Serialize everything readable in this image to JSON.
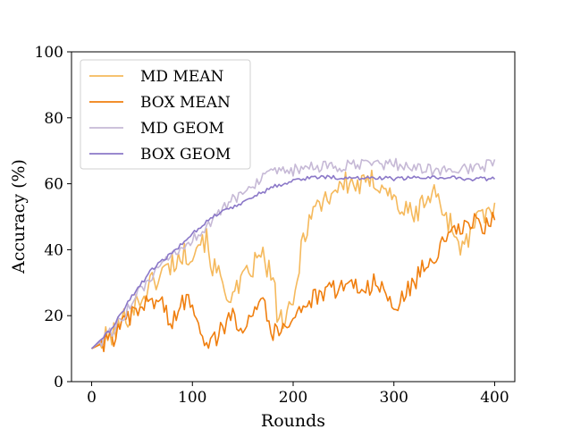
{
  "chart_data": {
    "type": "line",
    "title": "",
    "xlabel": "Rounds",
    "ylabel": "Accuracy (%)",
    "xlim": [
      -20,
      420
    ],
    "ylim": [
      0,
      100
    ],
    "xticks": [
      0,
      100,
      200,
      300,
      400
    ],
    "yticks": [
      0,
      20,
      40,
      60,
      80,
      100
    ],
    "legend_position": "top-left",
    "series": [
      {
        "name": "MD MEAN",
        "color": "#f5b95c",
        "noise": 4,
        "points": [
          [
            0,
            10
          ],
          [
            20,
            14
          ],
          [
            40,
            22
          ],
          [
            60,
            30
          ],
          [
            80,
            36
          ],
          [
            100,
            40
          ],
          [
            110,
            44
          ],
          [
            115,
            42
          ],
          [
            120,
            35
          ],
          [
            130,
            30
          ],
          [
            140,
            25
          ],
          [
            150,
            30
          ],
          [
            160,
            35
          ],
          [
            170,
            38
          ],
          [
            180,
            30
          ],
          [
            185,
            20
          ],
          [
            190,
            18
          ],
          [
            200,
            22
          ],
          [
            210,
            45
          ],
          [
            220,
            52
          ],
          [
            230,
            55
          ],
          [
            240,
            58
          ],
          [
            250,
            60
          ],
          [
            260,
            60
          ],
          [
            270,
            59
          ],
          [
            280,
            61
          ],
          [
            290,
            60
          ],
          [
            300,
            55
          ],
          [
            310,
            52
          ],
          [
            320,
            50
          ],
          [
            330,
            55
          ],
          [
            340,
            57
          ],
          [
            350,
            52
          ],
          [
            360,
            45
          ],
          [
            370,
            40
          ],
          [
            380,
            48
          ],
          [
            390,
            50
          ],
          [
            400,
            52
          ]
        ]
      },
      {
        "name": "BOX MEAN",
        "color": "#f07f0f",
        "noise": 3,
        "points": [
          [
            0,
            10
          ],
          [
            20,
            13
          ],
          [
            40,
            20
          ],
          [
            60,
            25
          ],
          [
            70,
            24
          ],
          [
            80,
            17
          ],
          [
            90,
            24
          ],
          [
            100,
            25
          ],
          [
            110,
            14
          ],
          [
            120,
            12
          ],
          [
            130,
            16
          ],
          [
            140,
            20
          ],
          [
            150,
            17
          ],
          [
            160,
            22
          ],
          [
            170,
            26
          ],
          [
            180,
            14
          ],
          [
            190,
            17
          ],
          [
            200,
            20
          ],
          [
            210,
            23
          ],
          [
            220,
            25
          ],
          [
            230,
            26
          ],
          [
            240,
            28
          ],
          [
            250,
            29
          ],
          [
            260,
            30
          ],
          [
            270,
            28
          ],
          [
            280,
            30
          ],
          [
            290,
            27
          ],
          [
            300,
            22
          ],
          [
            310,
            26
          ],
          [
            320,
            30
          ],
          [
            330,
            35
          ],
          [
            340,
            38
          ],
          [
            350,
            42
          ],
          [
            360,
            45
          ],
          [
            370,
            47
          ],
          [
            380,
            48
          ],
          [
            390,
            47
          ],
          [
            400,
            50
          ]
        ]
      },
      {
        "name": "MD GEOM",
        "color": "#c6b9d6",
        "noise": 1.8,
        "points": [
          [
            0,
            10
          ],
          [
            20,
            15
          ],
          [
            40,
            24
          ],
          [
            60,
            32
          ],
          [
            80,
            38
          ],
          [
            100,
            43
          ],
          [
            120,
            49
          ],
          [
            140,
            55
          ],
          [
            160,
            60
          ],
          [
            180,
            63
          ],
          [
            200,
            64
          ],
          [
            220,
            65
          ],
          [
            240,
            65
          ],
          [
            260,
            65.5
          ],
          [
            280,
            66
          ],
          [
            300,
            66
          ],
          [
            320,
            65
          ],
          [
            340,
            64
          ],
          [
            360,
            64
          ],
          [
            380,
            65
          ],
          [
            400,
            66
          ]
        ]
      },
      {
        "name": "BOX GEOM",
        "color": "#8b78c8",
        "noise": 0.6,
        "points": [
          [
            0,
            10
          ],
          [
            20,
            16
          ],
          [
            40,
            26
          ],
          [
            60,
            34
          ],
          [
            80,
            39
          ],
          [
            100,
            45
          ],
          [
            120,
            50
          ],
          [
            140,
            53
          ],
          [
            160,
            56
          ],
          [
            180,
            59
          ],
          [
            200,
            61
          ],
          [
            220,
            62
          ],
          [
            240,
            62
          ],
          [
            260,
            61.5
          ],
          [
            280,
            62
          ],
          [
            300,
            61.5
          ],
          [
            320,
            61.8
          ],
          [
            340,
            62
          ],
          [
            360,
            61.8
          ],
          [
            380,
            61.5
          ],
          [
            400,
            61.5
          ]
        ]
      }
    ]
  }
}
